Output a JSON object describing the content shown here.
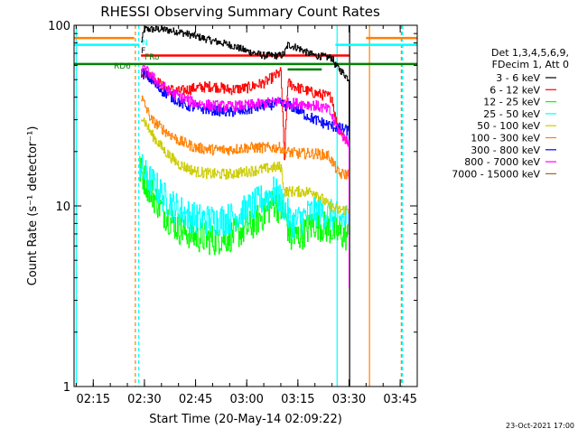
{
  "chart_data": {
    "type": "line",
    "title": "RHESSI Observing Summary Count Rates",
    "xlabel": "Start Time (20-May-14 02:09:22)",
    "ylabel": "Count Rate (s⁻¹ detector⁻¹)",
    "yscale": "log",
    "xlim": [
      "02:09:22",
      "03:50:00"
    ],
    "ylim": [
      1,
      100
    ],
    "x_ticks": [
      "02:15",
      "02:30",
      "02:45",
      "03:00",
      "03:15",
      "03:30",
      "03:45"
    ],
    "y_ticks": [
      1,
      10,
      100
    ],
    "y_tick_labels": [
      "1",
      "10",
      "100"
    ],
    "legend_header": [
      "Det 1,3,4,5,6,9,",
      "FDecim 1, Att 0"
    ],
    "legend_position": "right",
    "timestamp": "23-Oct-2021 17:00",
    "flag_labels": [
      {
        "text": "N",
        "color": "#00ffff"
      },
      {
        "text": "F",
        "color": "#000000"
      },
      {
        "text": "RD6",
        "color": "#008000"
      },
      {
        "text": "FRo",
        "color": "#008000"
      }
    ],
    "series": [
      {
        "name": "3 - 6 keV",
        "color": "#000000",
        "x": [
          "02:29:00",
          "02:30:00",
          "02:35:00",
          "02:40:00",
          "02:45:00",
          "02:50:00",
          "02:55:00",
          "03:00:00",
          "03:05:00",
          "03:10:00",
          "03:11:00",
          "03:12:00",
          "03:15:00",
          "03:18:00",
          "03:20:00",
          "03:25:00",
          "03:26:00",
          "03:28:00",
          "03:30:00"
        ],
        "y": [
          80,
          95,
          95,
          92,
          87,
          82,
          78,
          72,
          68,
          68,
          70,
          78,
          75,
          70,
          68,
          66,
          60,
          55,
          50
        ]
      },
      {
        "name": "6 - 12 keV",
        "color": "#ff0000",
        "x": [
          "02:29:00",
          "02:30:00",
          "02:33:00",
          "02:36:00",
          "02:40:00",
          "02:45:00",
          "02:50:00",
          "02:55:00",
          "03:00:00",
          "03:05:00",
          "03:10:00",
          "03:11:00",
          "03:12:00",
          "03:15:00",
          "03:20:00",
          "03:25:00",
          "03:26:00",
          "03:28:00",
          "03:30:00"
        ],
        "y": [
          55,
          55,
          50,
          45,
          43,
          45,
          46,
          44,
          45,
          48,
          55,
          18,
          48,
          45,
          42,
          40,
          30,
          25,
          22
        ]
      },
      {
        "name": "12 - 25 keV",
        "color": "#00ff00",
        "x": [
          "02:28:30",
          "02:30:00",
          "02:33:00",
          "02:36:00",
          "02:40:00",
          "02:45:00",
          "02:50:00",
          "02:55:00",
          "03:00:00",
          "03:05:00",
          "03:08:00",
          "03:11:00",
          "03:13:00",
          "03:16:00",
          "03:20:00",
          "03:24:00",
          "03:27:00",
          "03:30:00"
        ],
        "y": [
          16,
          14,
          11,
          9,
          7.5,
          6.8,
          6.5,
          6.8,
          7.5,
          9,
          10.5,
          9,
          6.5,
          7,
          8,
          7.5,
          7,
          6.8
        ]
      },
      {
        "name": "25 - 50 keV",
        "color": "#00ffff",
        "x": [
          "02:28:30",
          "02:30:00",
          "02:33:00",
          "02:36:00",
          "02:40:00",
          "02:45:00",
          "02:50:00",
          "02:55:00",
          "03:00:00",
          "03:05:00",
          "03:08:00",
          "03:11:00",
          "03:13:00",
          "03:16:00",
          "03:20:00",
          "03:24:00",
          "03:27:00",
          "03:30:00"
        ],
        "y": [
          17,
          15,
          13,
          11,
          9.5,
          8.5,
          8.3,
          8.5,
          9.5,
          11,
          12,
          10,
          8,
          8.5,
          9.5,
          9,
          8.5,
          8.5
        ]
      },
      {
        "name": "50 - 100 keV",
        "color": "#cccc00",
        "x": [
          "02:29:00",
          "02:32:00",
          "02:36:00",
          "02:40:00",
          "02:45:00",
          "02:50:00",
          "02:55:00",
          "03:00:00",
          "03:05:00",
          "03:10:00",
          "03:11:00",
          "03:15:00",
          "03:20:00",
          "03:24:00",
          "03:27:00",
          "03:30:00"
        ],
        "y": [
          32,
          25,
          20,
          17,
          15.5,
          15,
          15,
          15.5,
          16,
          16.5,
          12,
          12,
          12,
          10,
          9.5,
          9.5
        ]
      },
      {
        "name": "100 - 300 keV",
        "color": "#ff8000",
        "x": [
          "02:29:00",
          "02:32:00",
          "02:36:00",
          "02:40:00",
          "02:45:00",
          "02:50:00",
          "02:55:00",
          "03:00:00",
          "03:05:00",
          "03:10:00",
          "03:11:00",
          "03:15:00",
          "03:20:00",
          "03:24:00",
          "03:27:00",
          "03:30:00"
        ],
        "y": [
          40,
          30,
          26,
          23,
          21,
          20.5,
          20.5,
          21,
          21,
          21,
          20,
          19.5,
          19.5,
          19,
          15,
          15
        ]
      },
      {
        "name": "300 - 800 keV",
        "color": "#0000ff",
        "x": [
          "02:29:00",
          "02:31:00",
          "02:34:00",
          "02:38:00",
          "02:42:00",
          "02:45:00",
          "02:50:00",
          "02:55:00",
          "03:00:00",
          "03:05:00",
          "03:10:00",
          "03:11:00",
          "03:14:00",
          "03:17:00",
          "03:20:00",
          "03:24:00",
          "03:27:00",
          "03:30:00"
        ],
        "y": [
          55,
          52,
          45,
          40,
          36,
          35,
          34,
          33,
          34,
          36,
          37,
          36,
          35,
          32,
          30,
          28,
          27,
          26
        ]
      },
      {
        "name": "800 - 7000 keV",
        "color": "#ff00ff",
        "x": [
          "02:29:00",
          "02:31:00",
          "02:34:00",
          "02:38:00",
          "02:42:00",
          "02:45:00",
          "02:50:00",
          "02:55:00",
          "03:00:00",
          "03:05:00",
          "03:10:00",
          "03:11:00",
          "03:15:00",
          "03:20:00",
          "03:24:00",
          "03:27:00",
          "03:30:00"
        ],
        "y": [
          58,
          55,
          48,
          42,
          39,
          37,
          36,
          35.5,
          36,
          37,
          38,
          37,
          37,
          36,
          34,
          26,
          22
        ]
      },
      {
        "name": "7000 - 15000 keV",
        "color": "#996633",
        "x": [],
        "y": []
      }
    ],
    "segments": [
      {
        "name": "red-flag-line",
        "color": "#ff0000",
        "x": [
          "02:29:00",
          "03:30:00"
        ],
        "y": [
          68,
          68
        ]
      },
      {
        "name": "green-flag-line",
        "color": "#008000",
        "x": [
          "02:09:22",
          "03:50:00"
        ],
        "y": [
          61,
          61
        ]
      },
      {
        "name": "orange-flag-line-left",
        "color": "#ff8000",
        "x": [
          "02:09:22",
          "02:27:00"
        ],
        "y": [
          85,
          85
        ]
      },
      {
        "name": "orange-flag-line-right",
        "color": "#ff8000",
        "x": [
          "03:35:00",
          "03:50:00"
        ],
        "y": [
          85,
          85
        ]
      },
      {
        "name": "cyan-flag-line-left",
        "color": "#00ffff",
        "x": [
          "02:09:22",
          "02:28:30"
        ],
        "y": [
          78,
          78
        ]
      },
      {
        "name": "cyan-flag-line-right",
        "color": "#00ffff",
        "x": [
          "03:26:00",
          "03:50:00"
        ],
        "y": [
          78,
          78
        ]
      },
      {
        "name": "dark-green-short-line",
        "color": "#008000",
        "x": [
          "03:12:00",
          "03:22:00"
        ],
        "y": [
          57,
          57
        ]
      }
    ],
    "vlines": [
      {
        "name": "vline-cyan-left",
        "color": "#00ffff",
        "x": "02:10:00",
        "dashed": false
      },
      {
        "name": "vline-orange-dashed-1",
        "color": "#ff8000",
        "x": "02:27:20",
        "dashed": true
      },
      {
        "name": "vline-cyan-dashed-1",
        "color": "#00ffff",
        "x": "02:28:20",
        "dashed": true
      },
      {
        "name": "vline-cyan-2",
        "color": "#00ffff",
        "x": "03:26:30",
        "dashed": false
      },
      {
        "name": "vline-black-end",
        "color": "#000000",
        "x": "03:30:10",
        "dashed": false
      },
      {
        "name": "vline-orange-solid",
        "color": "#ff8000",
        "x": "03:36:00",
        "dashed": false
      },
      {
        "name": "vline-orange-dashed-2",
        "color": "#ff8000",
        "x": "03:45:20",
        "dashed": true
      },
      {
        "name": "vline-cyan-dashed-2",
        "color": "#00ffff",
        "x": "03:45:40",
        "dashed": true
      }
    ]
  }
}
